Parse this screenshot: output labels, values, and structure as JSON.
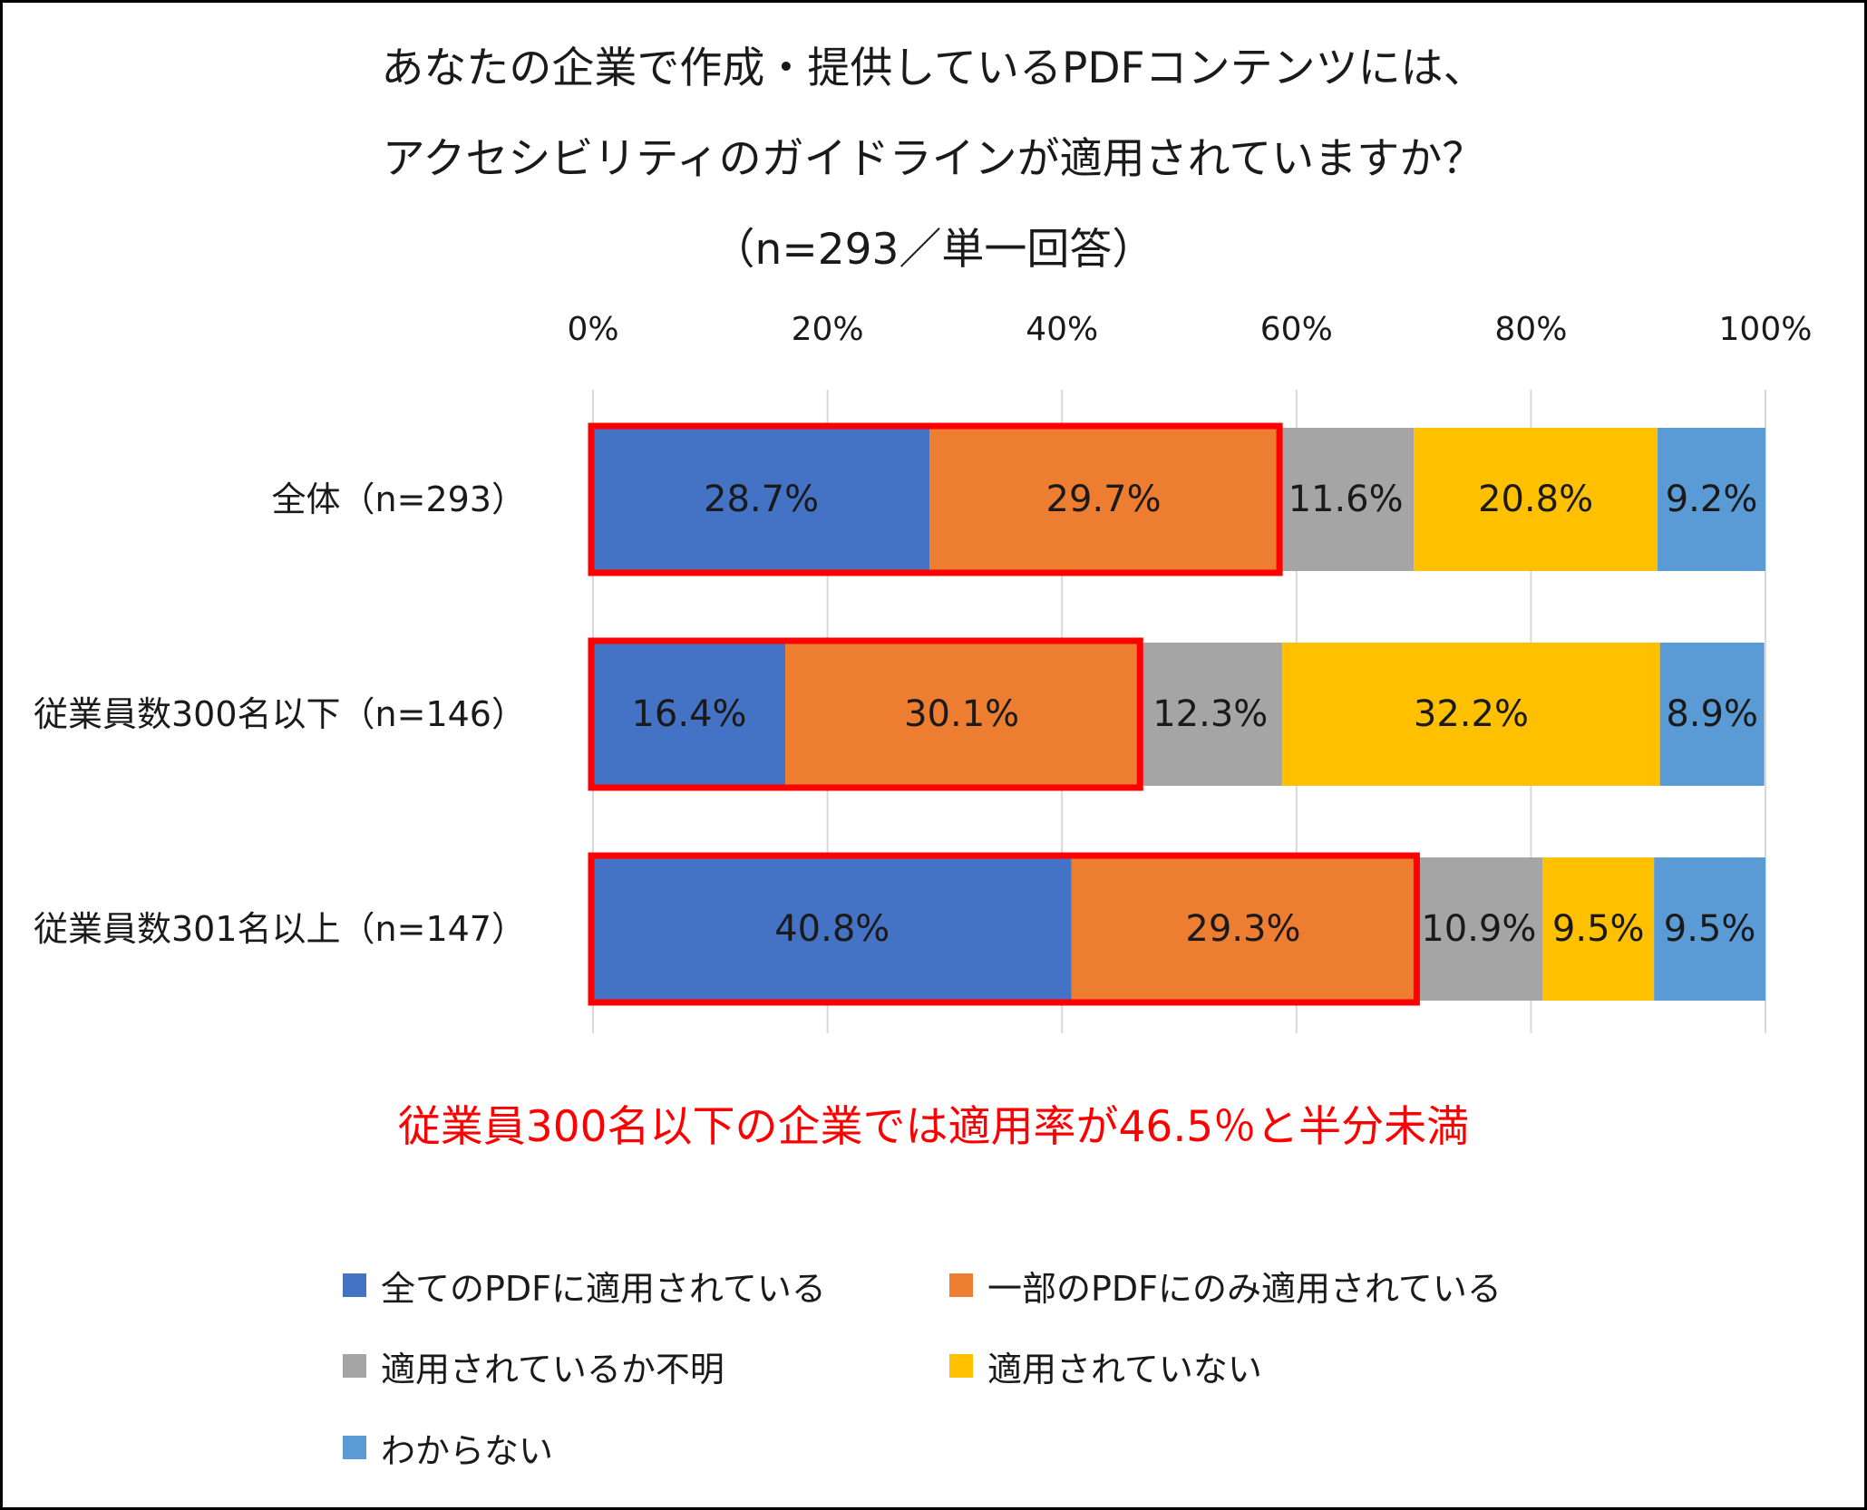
{
  "chart_data": {
    "type": "bar",
    "orientation": "horizontal",
    "stacked": "percent",
    "title_lines": [
      "あなたの企業で作成・提供しているPDFコンテンツには、",
      "アクセシビリティのガイドラインが適用されていますか？",
      "（n=293／単一回答）"
    ],
    "categories": [
      "全体（n=293）",
      "従業員数300名以下（n=146）",
      "従業員数301名以上（n=147）"
    ],
    "x_ticks": [
      "0%",
      "20%",
      "40%",
      "60%",
      "80%",
      "100%"
    ],
    "xlim": [
      0,
      100
    ],
    "grid": true,
    "series": [
      {
        "name": "全てのPDFに適用されている",
        "color": "#4472C4",
        "values": [
          28.7,
          16.4,
          40.8
        ],
        "labels": [
          "28.7%",
          "16.4%",
          "40.8%"
        ]
      },
      {
        "name": "一部のPDFにのみ適用されている",
        "color": "#ED7D31",
        "values": [
          29.7,
          30.1,
          29.3
        ],
        "labels": [
          "29.7%",
          "30.1%",
          "29.3%"
        ]
      },
      {
        "name": "適用されているか不明",
        "color": "#A5A5A5",
        "values": [
          11.6,
          12.3,
          10.9
        ],
        "labels": [
          "11.6%",
          "12.3%",
          "10.9%"
        ]
      },
      {
        "name": "適用されていない",
        "color": "#FFC000",
        "values": [
          20.8,
          32.2,
          9.5
        ],
        "labels": [
          "20.8%",
          "32.2%",
          "9.5%"
        ]
      },
      {
        "name": "わからない",
        "color": "#5B9BD5",
        "values": [
          9.2,
          8.9,
          9.5
        ],
        "labels": [
          "9.2%",
          "8.9%",
          "9.5%"
        ]
      }
    ],
    "highlight": {
      "color": "#FF0000",
      "series": [
        0,
        1
      ]
    },
    "annotation": "従業員300名以下の企業では適用率が46.5％と半分未満",
    "legend_position": "bottom"
  }
}
